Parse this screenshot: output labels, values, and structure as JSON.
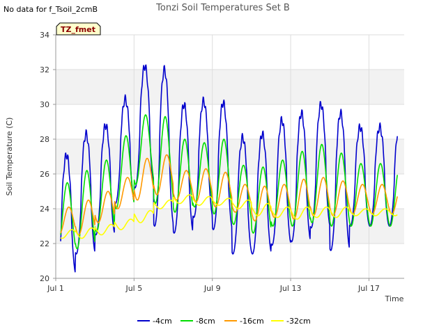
{
  "header": {
    "title": "Tonzi Soil Temperatures Set B",
    "nodata_note": "No data for f_Tsoil_2cmB",
    "badge": "TZ_fmet"
  },
  "chart_data": {
    "type": "line",
    "title": "Tonzi Soil Temperatures Set B",
    "xlabel": "Time",
    "ylabel": "Soil Temperature (C)",
    "xlim": [
      1.0,
      18.8
    ],
    "ylim": [
      20,
      34
    ],
    "x_tick_values": [
      1,
      5,
      9,
      13,
      17
    ],
    "x_tick_labels": [
      "Jul 1",
      "Jul 5",
      "Jul 9",
      "Jul 13",
      "Jul 17"
    ],
    "y_ticks": [
      20,
      22,
      24,
      26,
      28,
      30,
      32,
      34
    ],
    "grid": true,
    "legend_position": "bottom",
    "series": [
      {
        "name": "-4cm",
        "color": "#0000cc",
        "peaks": [
          27.1,
          28.3,
          28.8,
          30.3,
          32.2,
          32.0,
          30.0,
          30.2,
          30.1,
          28.1,
          28.3,
          29.1,
          29.5,
          30.0,
          29.5,
          28.7
        ],
        "troughs": [
          20.2,
          21.4,
          22.5,
          24.3,
          25.2,
          23.0,
          22.6,
          23.5,
          22.8,
          21.4,
          21.4,
          21.9,
          22.1,
          22.9,
          21.6,
          23.0
        ]
      },
      {
        "name": "-8cm",
        "color": "#00dd00",
        "peaks": [
          25.5,
          26.2,
          26.8,
          28.2,
          29.4,
          29.3,
          28.0,
          27.8,
          28.0,
          26.5,
          26.4,
          26.8,
          27.3,
          27.7,
          27.2,
          26.6
        ],
        "troughs": [
          21.6,
          21.7,
          22.7,
          24.0,
          25.4,
          24.3,
          23.8,
          24.1,
          23.7,
          23.1,
          22.6,
          23.0,
          23.0,
          23.2,
          23.0,
          23.0
        ]
      },
      {
        "name": "-16cm",
        "color": "#ff9900",
        "peaks": [
          24.1,
          24.5,
          25.0,
          25.8,
          26.9,
          27.1,
          26.2,
          26.3,
          26.1,
          25.4,
          25.3,
          25.4,
          25.7,
          25.8,
          25.6,
          25.4
        ],
        "troughs": [
          22.5,
          22.5,
          23.2,
          24.0,
          24.5,
          24.8,
          24.5,
          24.4,
          24.1,
          23.8,
          23.3,
          23.5,
          23.4,
          23.6,
          23.6,
          23.7
        ]
      },
      {
        "name": "-32cm",
        "color": "#ffff00",
        "peaks": [
          22.8,
          22.9,
          23.1,
          23.4,
          23.9,
          24.5,
          24.8,
          24.7,
          24.6,
          24.5,
          24.3,
          24.1,
          24.1,
          24.1,
          24.1,
          24.0
        ],
        "troughs": [
          22.3,
          22.3,
          22.5,
          22.8,
          23.2,
          24.0,
          24.3,
          24.2,
          24.2,
          24.0,
          23.6,
          23.5,
          23.4,
          23.5,
          23.5,
          23.6
        ]
      }
    ]
  }
}
